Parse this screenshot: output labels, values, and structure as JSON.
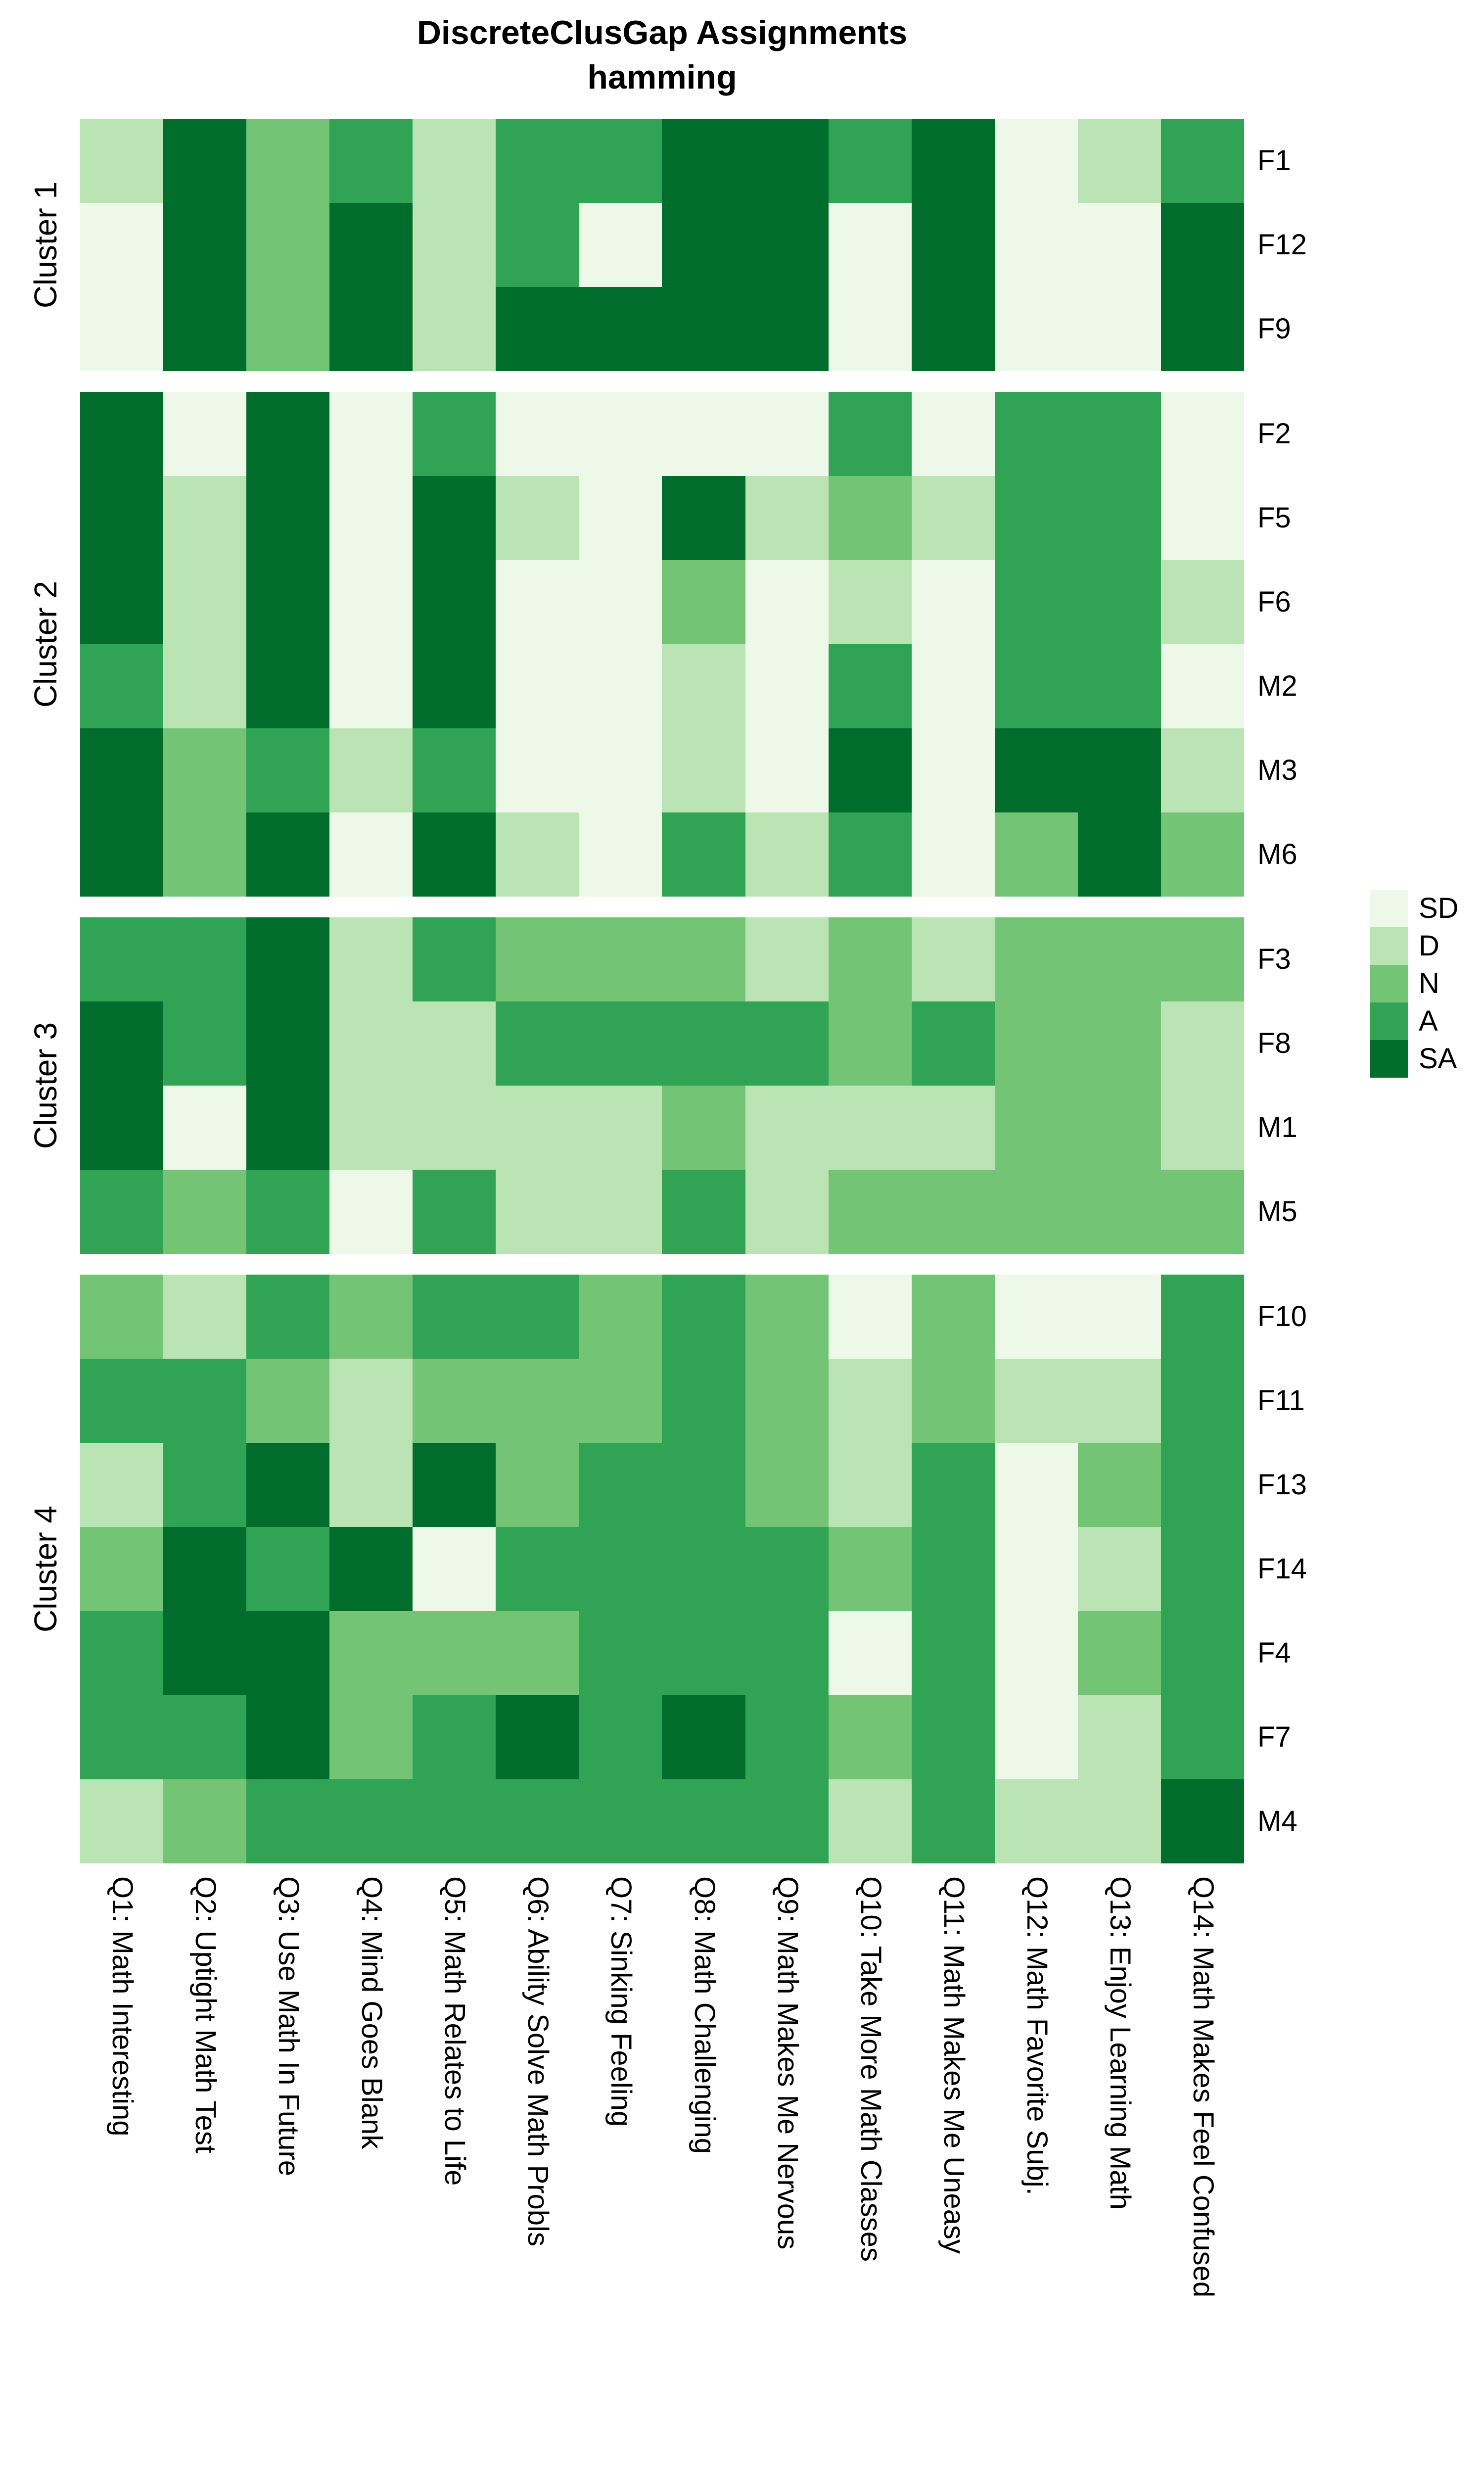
{
  "title": {
    "line1": "DiscreteClusGap Assignments",
    "line2": "hamming"
  },
  "legend": {
    "items": [
      {
        "code": "SD",
        "color": "#edf8e9"
      },
      {
        "code": "D",
        "color": "#bae4b3"
      },
      {
        "code": "N",
        "color": "#74c476"
      },
      {
        "code": "A",
        "color": "#31a354"
      },
      {
        "code": "SA",
        "color": "#006d2c"
      }
    ]
  },
  "chart_data": {
    "type": "heatmap",
    "value_scale": [
      "SD",
      "D",
      "N",
      "A",
      "SA"
    ],
    "palette": {
      "SD": "#edf8e9",
      "D": "#bae4b3",
      "N": "#74c476",
      "A": "#31a354",
      "SA": "#006d2c"
    },
    "columns": [
      "Q1: Math Interesting",
      "Q2: Uptight Math Test",
      "Q3: Use Math In Future",
      "Q4: Mind Goes Blank",
      "Q5: Math Relates to Life",
      "Q6: Ability Solve Math Probls",
      "Q7: Sinking Feeling",
      "Q8: Math Challenging",
      "Q9: Math Makes Me Nervous",
      "Q10: Take More Math Classes",
      "Q11: Math Makes Me Uneasy",
      "Q12: Math Favorite Subj.",
      "Q13: Enjoy Learning Math",
      "Q14: Math Makes Feel Confused"
    ],
    "clusters": [
      {
        "label": "Cluster 1",
        "rows": [
          {
            "id": "F1",
            "values": [
              "D",
              "SA",
              "N",
              "A",
              "D",
              "A",
              "A",
              "SA",
              "SA",
              "A",
              "SA",
              "SD",
              "D",
              "A"
            ]
          },
          {
            "id": "F12",
            "values": [
              "SD",
              "SA",
              "N",
              "SA",
              "D",
              "A",
              "SD",
              "SA",
              "SA",
              "SD",
              "SA",
              "SD",
              "SD",
              "SA"
            ]
          },
          {
            "id": "F9",
            "values": [
              "SD",
              "SA",
              "N",
              "SA",
              "D",
              "SA",
              "SA",
              "SA",
              "SA",
              "SD",
              "SA",
              "SD",
              "SD",
              "SA"
            ]
          }
        ]
      },
      {
        "label": "Cluster 2",
        "rows": [
          {
            "id": "F2",
            "values": [
              "SA",
              "SD",
              "SA",
              "SD",
              "A",
              "SD",
              "SD",
              "SD",
              "SD",
              "A",
              "SD",
              "A",
              "A",
              "SD"
            ]
          },
          {
            "id": "F5",
            "values": [
              "SA",
              "D",
              "SA",
              "SD",
              "SA",
              "D",
              "SD",
              "SA",
              "D",
              "N",
              "D",
              "A",
              "A",
              "SD"
            ]
          },
          {
            "id": "F6",
            "values": [
              "SA",
              "D",
              "SA",
              "SD",
              "SA",
              "SD",
              "SD",
              "N",
              "SD",
              "D",
              "SD",
              "A",
              "A",
              "D"
            ]
          },
          {
            "id": "M2",
            "values": [
              "A",
              "D",
              "SA",
              "SD",
              "SA",
              "SD",
              "SD",
              "D",
              "SD",
              "A",
              "SD",
              "A",
              "A",
              "SD"
            ]
          },
          {
            "id": "M3",
            "values": [
              "SA",
              "N",
              "A",
              "D",
              "A",
              "SD",
              "SD",
              "D",
              "SD",
              "SA",
              "SD",
              "SA",
              "SA",
              "D"
            ]
          },
          {
            "id": "M6",
            "values": [
              "SA",
              "N",
              "SA",
              "SD",
              "SA",
              "D",
              "SD",
              "A",
              "D",
              "A",
              "SD",
              "N",
              "SA",
              "N"
            ]
          }
        ]
      },
      {
        "label": "Cluster 3",
        "rows": [
          {
            "id": "F3",
            "values": [
              "A",
              "A",
              "SA",
              "D",
              "A",
              "N",
              "N",
              "N",
              "D",
              "N",
              "D",
              "N",
              "N",
              "N"
            ]
          },
          {
            "id": "F8",
            "values": [
              "SA",
              "A",
              "SA",
              "D",
              "D",
              "A",
              "A",
              "A",
              "A",
              "N",
              "A",
              "N",
              "N",
              "D"
            ]
          },
          {
            "id": "M1",
            "values": [
              "SA",
              "SD",
              "SA",
              "D",
              "D",
              "D",
              "D",
              "N",
              "D",
              "D",
              "D",
              "N",
              "N",
              "D"
            ]
          },
          {
            "id": "M5",
            "values": [
              "A",
              "N",
              "A",
              "SD",
              "A",
              "D",
              "D",
              "A",
              "D",
              "N",
              "N",
              "N",
              "N",
              "N"
            ]
          }
        ]
      },
      {
        "label": "Cluster 4",
        "rows": [
          {
            "id": "F10",
            "values": [
              "N",
              "D",
              "A",
              "N",
              "A",
              "A",
              "N",
              "A",
              "N",
              "SD",
              "N",
              "SD",
              "SD",
              "A"
            ]
          },
          {
            "id": "F11",
            "values": [
              "A",
              "A",
              "N",
              "D",
              "N",
              "N",
              "N",
              "A",
              "N",
              "D",
              "N",
              "D",
              "D",
              "A"
            ]
          },
          {
            "id": "F13",
            "values": [
              "D",
              "A",
              "SA",
              "D",
              "SA",
              "N",
              "A",
              "A",
              "N",
              "D",
              "A",
              "SD",
              "N",
              "A"
            ]
          },
          {
            "id": "F14",
            "values": [
              "N",
              "SA",
              "A",
              "SA",
              "SD",
              "A",
              "A",
              "A",
              "A",
              "N",
              "A",
              "SD",
              "D",
              "A"
            ]
          },
          {
            "id": "F4",
            "values": [
              "A",
              "SA",
              "SA",
              "N",
              "N",
              "N",
              "A",
              "A",
              "A",
              "SD",
              "A",
              "SD",
              "N",
              "A"
            ]
          },
          {
            "id": "F7",
            "values": [
              "A",
              "A",
              "SA",
              "N",
              "A",
              "SA",
              "A",
              "SA",
              "A",
              "N",
              "A",
              "SD",
              "D",
              "A"
            ]
          },
          {
            "id": "M4",
            "values": [
              "D",
              "N",
              "A",
              "A",
              "A",
              "A",
              "A",
              "A",
              "A",
              "D",
              "A",
              "D",
              "D",
              "SA"
            ]
          }
        ]
      }
    ],
    "layout": {
      "grid_on": false,
      "legend_position": "right",
      "x_labels_rotated_deg": 90,
      "cluster_labels_rotated_deg": -90
    }
  }
}
